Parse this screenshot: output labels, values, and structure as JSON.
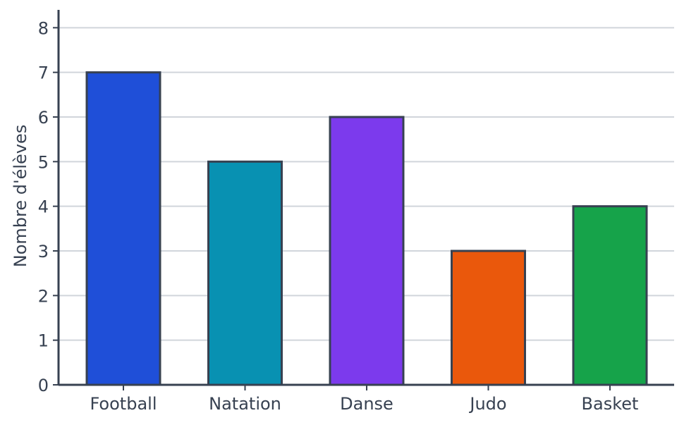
{
  "chart_data": {
    "type": "bar",
    "title": "",
    "xlabel": "",
    "ylabel": "Nombre d'élèves",
    "categories": [
      "Football",
      "Natation",
      "Danse",
      "Judo",
      "Basket"
    ],
    "values": [
      7,
      5,
      6,
      3,
      4
    ],
    "colors": [
      "#1f4fd8",
      "#0891b2",
      "#7c3aed",
      "#ea580c",
      "#16a34a"
    ],
    "ylim": [
      0,
      8.4
    ],
    "yticks": [
      0,
      1,
      2,
      3,
      4,
      5,
      6,
      7,
      8
    ],
    "grid": true,
    "legend": "none"
  }
}
